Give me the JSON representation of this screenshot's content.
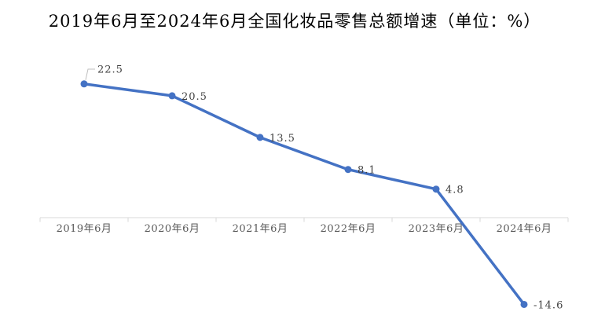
{
  "page": {
    "background": "#FFFFFF"
  },
  "chart_data": {
    "type": "line",
    "title": "2019年6月至2024年6月全国化妆品零售总额增速（单位：%）",
    "unit": "%",
    "categories": [
      "2019年6月",
      "2020年6月",
      "2021年6月",
      "2022年6月",
      "2023年6月",
      "2024年6月"
    ],
    "series": [
      {
        "name": "全国化妆品零售总额增速",
        "values": [
          22.5,
          20.5,
          13.5,
          8.1,
          4.8,
          -14.6
        ]
      }
    ],
    "data_labels": [
      "22.5",
      "20.5",
      "13.5",
      "8.1",
      "4.8",
      "-14.6"
    ],
    "xlabel": "",
    "ylabel": "",
    "ylim": [
      -20,
      25
    ],
    "grid": false,
    "legend": "none",
    "y_axis_visible": false,
    "colors": {
      "line": "#4472C4",
      "marker": "#4472C4",
      "axis": "#D9D9D9",
      "tick_label": "#595959",
      "data_label": "#404040",
      "leader_line": "#BFBFBF",
      "title": "#000000",
      "background": "#FFFFFF"
    }
  }
}
